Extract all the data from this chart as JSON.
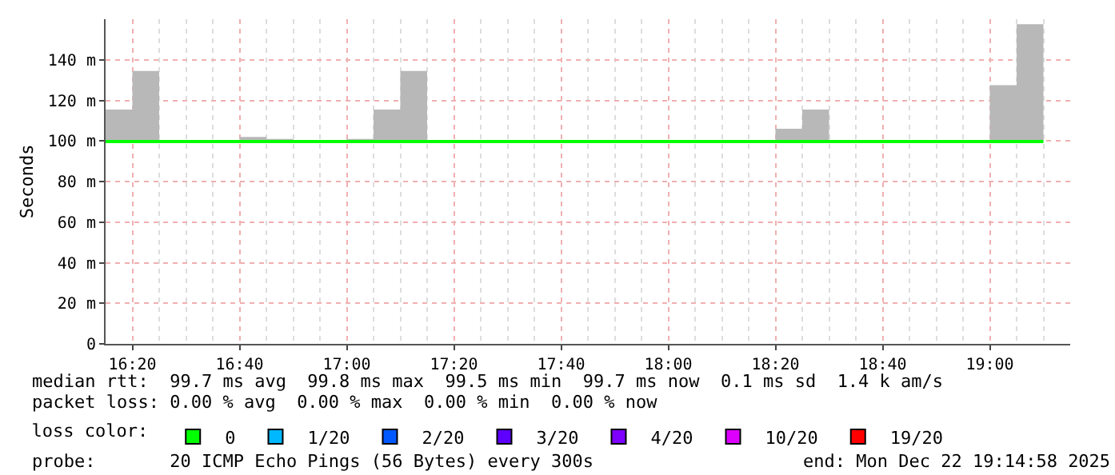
{
  "chart_data": {
    "type": "step",
    "ylabel": "Seconds",
    "xlim": [
      "2025-12-22T16:15",
      "2025-12-22T19:15"
    ],
    "xticks": [
      {
        "value": "2025-12-22T16:20",
        "label": "16:20"
      },
      {
        "value": "2025-12-22T16:40",
        "label": "16:40"
      },
      {
        "value": "2025-12-22T17:00",
        "label": "17:00"
      },
      {
        "value": "2025-12-22T17:20",
        "label": "17:20"
      },
      {
        "value": "2025-12-22T17:40",
        "label": "17:40"
      },
      {
        "value": "2025-12-22T18:00",
        "label": "18:00"
      },
      {
        "value": "2025-12-22T18:20",
        "label": "18:20"
      },
      {
        "value": "2025-12-22T18:40",
        "label": "18:40"
      },
      {
        "value": "2025-12-22T19:00",
        "label": "19:00"
      }
    ],
    "ylim": [
      0,
      160
    ],
    "yticks": [
      0,
      {
        "value": 20,
        "label": "20 m"
      },
      {
        "value": 40,
        "label": "40 m"
      },
      {
        "value": 60,
        "label": "60 m"
      },
      {
        "value": 80,
        "label": "80 m"
      },
      {
        "value": 100,
        "label": "100 m"
      },
      {
        "value": 120,
        "label": "120 m"
      },
      {
        "value": 140,
        "label": "140 m"
      }
    ],
    "grid": true,
    "legend": "bottom",
    "legend_title": "loss color:",
    "series": [
      {
        "color": "#00ff00",
        "x": [
          "2025-12-22T16:15",
          "2025-12-22T16:20",
          "2025-12-22T16:25",
          "2025-12-22T16:30",
          "2025-12-22T16:35",
          "2025-12-22T16:40",
          "2025-12-22T16:45",
          "2025-12-22T16:50",
          "2025-12-22T16:55",
          "2025-12-22T17:00",
          "2025-12-22T17:05",
          "2025-12-22T17:10",
          "2025-12-22T17:15",
          "2025-12-22T17:20",
          "2025-12-22T17:25",
          "2025-12-22T17:30",
          "2025-12-22T17:35",
          "2025-12-22T17:40",
          "2025-12-22T17:45",
          "2025-12-22T17:50",
          "2025-12-22T17:55",
          "2025-12-22T18:00",
          "2025-12-22T18:05",
          "2025-12-22T18:10",
          "2025-12-22T18:15",
          "2025-12-22T18:20",
          "2025-12-22T18:25",
          "2025-12-22T18:30",
          "2025-12-22T18:35",
          "2025-12-22T18:40",
          "2025-12-22T18:45",
          "2025-12-22T18:50",
          "2025-12-22T18:55",
          "2025-12-22T19:00",
          "2025-12-22T19:05",
          "2025-12-22T19:10"
        ],
        "values": [
          99.7,
          99.7,
          99.7,
          99.7,
          99.7,
          99.7,
          99.7,
          99.7,
          99.7,
          99.7,
          99.7,
          99.7,
          99.7,
          99.7,
          99.7,
          99.7,
          99.7,
          99.7,
          99.7,
          99.7,
          99.7,
          99.7,
          99.7,
          99.7,
          99.7,
          99.7,
          99.7,
          99.7,
          99.7,
          99.7,
          99.7,
          99.7,
          99.7,
          99.7,
          99.7,
          99.7
        ],
        "lower": [
          99.5,
          99.5,
          99.5,
          99.5,
          99.5,
          99.5,
          99.5,
          99.5,
          99.5,
          99.5,
          99.5,
          99.5,
          99.5,
          99.5,
          99.5,
          99.5,
          99.5,
          99.5,
          99.5,
          99.5,
          99.5,
          99.5,
          99.5,
          99.5,
          99.5,
          99.5,
          99.5,
          99.5,
          99.5,
          99.5,
          99.5,
          99.5,
          99.5,
          99.5,
          99.5,
          99.5
        ],
        "upper": [
          115.5,
          134.5,
          99.7,
          99.7,
          99.7,
          102,
          101,
          99.7,
          99.7,
          101,
          115.5,
          134.5,
          99.7,
          99.7,
          99.7,
          99.7,
          100.5,
          100.5,
          99.7,
          99.7,
          99.7,
          99.7,
          99.7,
          99.7,
          99.7,
          106,
          115.5,
          99.7,
          99.7,
          99.7,
          100.5,
          100.5,
          100.5,
          127.5,
          157.5,
          157.5
        ]
      },
      {
        "type": "scatter",
        "marker": "square",
        "name": "0",
        "color": "#00ff00",
        "values": [
          null
        ]
      },
      {
        "type": "scatter",
        "marker": "square",
        "name": "1/20",
        "color": "#00b8ff",
        "values": [
          null
        ]
      },
      {
        "type": "scatter",
        "marker": "square",
        "name": "2/20",
        "color": "#0059ff",
        "values": [
          null
        ]
      },
      {
        "type": "scatter",
        "marker": "square",
        "name": "3/20",
        "color": "#5e00ff",
        "values": [
          null
        ]
      },
      {
        "type": "scatter",
        "marker": "square",
        "name": "4/20",
        "color": "#7e00ff",
        "values": [
          null
        ]
      },
      {
        "type": "scatter",
        "marker": "square",
        "name": "10/20",
        "color": "#dd00ff",
        "values": [
          null
        ]
      },
      {
        "type": "scatter",
        "marker": "square",
        "name": "19/20",
        "color": "#ff0000",
        "values": [
          null
        ]
      }
    ],
    "annotations": [
      "median rtt:  99.7 ms avg  99.8 ms max  99.5 ms min  99.7 ms now  0.1 ms sd  1.4 k am/s",
      "packet loss: 0.00 % avg  0.00 % max  0.00 % min  0.00 % now",
      "probe:       20 ICMP Echo Pings (56 Bytes) every 300s",
      "end: Mon Dec 22 19:14:58 2025"
    ]
  }
}
